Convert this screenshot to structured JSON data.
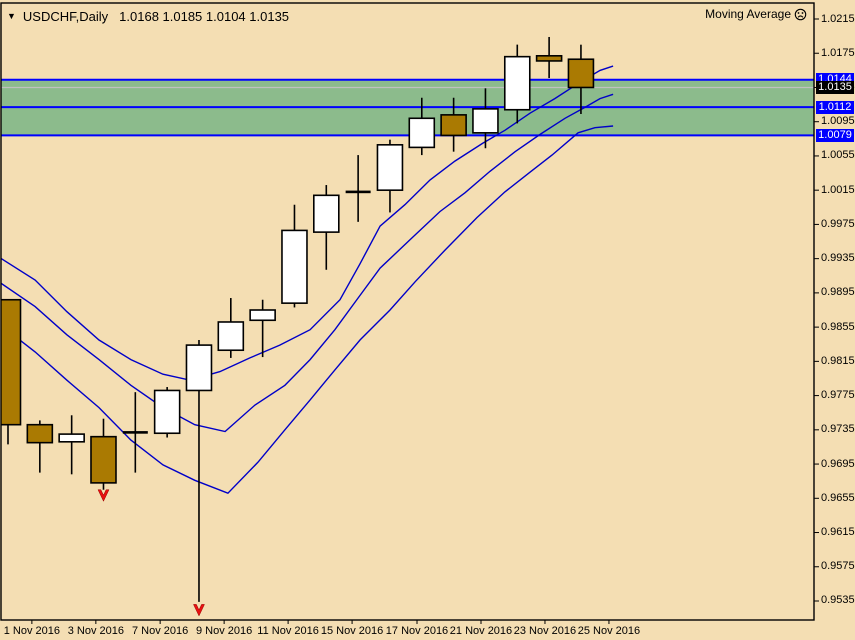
{
  "title": {
    "dropdown_icon": "▼",
    "symbol_period": "USDCHF,Daily",
    "ohlc": "1.0168 1.0185 1.0104 1.0135"
  },
  "indicator_label": {
    "text": "Moving Average",
    "icon": "sad-face"
  },
  "colors": {
    "background": "#F4DEB3",
    "band_green": "#8CBB8C",
    "level_blue": "#0000FF",
    "ma_blue": "#0000C8",
    "current_price_silver": "#C0C0C0",
    "candle_bear_fill": "#AA7A02",
    "candle_bull_fill": "#FFFFFF",
    "candle_border": "#000000",
    "arrow_red": "#E81010",
    "badge_blue_bg": "#0000FF",
    "badge_black_bg": "#000000",
    "badge_text": "#FFFFFF",
    "axis_text": "#000000",
    "border_black": "#000000"
  },
  "chart_data": {
    "type": "candlestick",
    "symbol": "USDCHF",
    "timeframe": "Daily",
    "title": "USDCHF,Daily 1.0168 1.0185 1.0104 1.0135",
    "grid": false,
    "legend_position": "none",
    "ylim_plot": [
      0.95128,
      1.02337
    ],
    "y_ticks": [
      1.0215,
      1.0175,
      1.0135,
      1.0095,
      1.0055,
      1.0015,
      0.9975,
      0.9935,
      0.9895,
      0.9855,
      0.9815,
      0.9775,
      0.9735,
      0.9695,
      0.9655,
      0.9615,
      0.9575,
      0.9535
    ],
    "x_ticks": [
      {
        "index": 0.75,
        "label": "1 Nov 2016"
      },
      {
        "index": 2.76,
        "label": "3 Nov 2016"
      },
      {
        "index": 4.78,
        "label": "7 Nov 2016"
      },
      {
        "index": 6.79,
        "label": "9 Nov 2016"
      },
      {
        "index": 8.8,
        "label": "11 Nov 2016"
      },
      {
        "index": 10.81,
        "label": "15 Nov 2016"
      },
      {
        "index": 12.85,
        "label": "17 Nov 2016"
      },
      {
        "index": 14.86,
        "label": "21 Nov 2016"
      },
      {
        "index": 16.87,
        "label": "23 Nov 2016"
      },
      {
        "index": 18.88,
        "label": "25 Nov 2016"
      }
    ],
    "candles": [
      {
        "date": "1 Nov 2016",
        "o": 0.9887,
        "h": 0.9887,
        "l": 0.9718,
        "c": 0.9741,
        "dir": "bear"
      },
      {
        "date": "2 Nov 2016",
        "o": 0.9741,
        "h": 0.9746,
        "l": 0.9685,
        "c": 0.972,
        "dir": "bear"
      },
      {
        "date": "3 Nov 2016",
        "o": 0.9721,
        "h": 0.9752,
        "l": 0.9683,
        "c": 0.973,
        "dir": "bull"
      },
      {
        "date": "4 Nov 2016",
        "o": 0.9727,
        "h": 0.9748,
        "l": 0.9665,
        "c": 0.9673,
        "dir": "bear"
      },
      {
        "date": "7 Nov 2016",
        "o": 0.9732,
        "h": 0.9779,
        "l": 0.9685,
        "c": 0.9732,
        "dir": "doji"
      },
      {
        "date": "8 Nov 2016",
        "o": 0.9731,
        "h": 0.9785,
        "l": 0.9726,
        "c": 0.9781,
        "dir": "bull"
      },
      {
        "date": "9 Nov 2016",
        "o": 0.9781,
        "h": 0.984,
        "l": 0.9534,
        "c": 0.9834,
        "dir": "bull"
      },
      {
        "date": "10 Nov 2016",
        "o": 0.9828,
        "h": 0.9889,
        "l": 0.9819,
        "c": 0.9861,
        "dir": "bull"
      },
      {
        "date": "11 Nov 2016",
        "o": 0.9863,
        "h": 0.9887,
        "l": 0.982,
        "c": 0.9875,
        "dir": "bull"
      },
      {
        "date": "14 Nov 2016",
        "o": 0.9883,
        "h": 0.9998,
        "l": 0.9878,
        "c": 0.9968,
        "dir": "bull"
      },
      {
        "date": "15 Nov 2016",
        "o": 0.9966,
        "h": 1.0021,
        "l": 0.9922,
        "c": 1.0009,
        "dir": "bull"
      },
      {
        "date": "16 Nov 2016",
        "o": 1.0013,
        "h": 1.0056,
        "l": 0.9978,
        "c": 1.0013,
        "dir": "doji"
      },
      {
        "date": "17 Nov 2016",
        "o": 1.0015,
        "h": 1.0074,
        "l": 0.9989,
        "c": 1.0068,
        "dir": "bull"
      },
      {
        "date": "18 Nov 2016",
        "o": 1.0065,
        "h": 1.0123,
        "l": 1.0056,
        "c": 1.0099,
        "dir": "bull"
      },
      {
        "date": "21 Nov 2016",
        "o": 1.0103,
        "h": 1.0123,
        "l": 1.006,
        "c": 1.0079,
        "dir": "bear"
      },
      {
        "date": "22 Nov 2016",
        "o": 1.0082,
        "h": 1.0134,
        "l": 1.0064,
        "c": 1.011,
        "dir": "bull"
      },
      {
        "date": "23 Nov 2016",
        "o": 1.0109,
        "h": 1.0185,
        "l": 1.0093,
        "c": 1.0171,
        "dir": "bull"
      },
      {
        "date": "24 Nov 2016",
        "o": 1.0172,
        "h": 1.0194,
        "l": 1.0146,
        "c": 1.0166,
        "dir": "bear"
      },
      {
        "date": "25 Nov 2016",
        "o": 1.0168,
        "h": 1.0185,
        "l": 1.0104,
        "c": 1.0135,
        "dir": "bear"
      }
    ],
    "band": {
      "from": 1.0079,
      "to": 1.0144
    },
    "levels": [
      {
        "price": 1.0144,
        "badge": "1.0144",
        "badge_bg": "blue"
      },
      {
        "price": 1.0112,
        "badge": "1.0112",
        "badge_bg": "blue"
      },
      {
        "price": 1.0079,
        "badge": "1.0079",
        "badge_bg": "blue"
      }
    ],
    "current_price_line": {
      "price": 1.0135,
      "badge": "1.0135",
      "badge_bg": "black"
    },
    "ma_lines": [
      {
        "name": "ma-upper",
        "points": [
          [
            -0.25,
            0.9936
          ],
          [
            0.85,
            0.991
          ],
          [
            1.85,
            0.9873
          ],
          [
            2.86,
            0.984
          ],
          [
            3.86,
            0.9817
          ],
          [
            4.87,
            0.98
          ],
          [
            5.72,
            0.9793
          ],
          [
            6.66,
            0.9803
          ],
          [
            7.6,
            0.9819
          ],
          [
            8.54,
            0.9834
          ],
          [
            9.49,
            0.9852
          ],
          [
            10.43,
            0.9887
          ],
          [
            11.06,
            0.9929
          ],
          [
            11.69,
            0.9973
          ],
          [
            12.47,
            0.9998
          ],
          [
            13.26,
            1.0027
          ],
          [
            14.04,
            1.0049
          ],
          [
            14.92,
            1.007
          ],
          [
            15.61,
            1.0085
          ],
          [
            16.4,
            1.0105
          ],
          [
            17.18,
            1.0122
          ],
          [
            17.97,
            1.0141
          ],
          [
            18.6,
            1.0155
          ],
          [
            19.01,
            1.016
          ]
        ]
      },
      {
        "name": "ma-middle",
        "points": [
          [
            -0.25,
            0.9907
          ],
          [
            0.85,
            0.9879
          ],
          [
            1.85,
            0.9846
          ],
          [
            2.86,
            0.9817
          ],
          [
            3.86,
            0.9787
          ],
          [
            4.87,
            0.9761
          ],
          [
            5.87,
            0.9741
          ],
          [
            6.82,
            0.9733
          ],
          [
            7.76,
            0.9764
          ],
          [
            8.7,
            0.9787
          ],
          [
            9.49,
            0.9817
          ],
          [
            10.27,
            0.9852
          ],
          [
            11.0,
            0.9889
          ],
          [
            11.69,
            0.9924
          ],
          [
            12.63,
            0.9957
          ],
          [
            13.57,
            0.999
          ],
          [
            14.36,
            1.0012
          ],
          [
            15.14,
            1.0037
          ],
          [
            15.93,
            1.006
          ],
          [
            16.71,
            1.008
          ],
          [
            17.5,
            1.0099
          ],
          [
            18.13,
            1.0112
          ],
          [
            18.6,
            1.0122
          ],
          [
            19.01,
            1.0127
          ]
        ]
      },
      {
        "name": "ma-lower",
        "points": [
          [
            -0.25,
            0.9858
          ],
          [
            0.85,
            0.9826
          ],
          [
            1.85,
            0.9793
          ],
          [
            2.86,
            0.9761
          ],
          [
            3.86,
            0.9723
          ],
          [
            4.87,
            0.9694
          ],
          [
            5.87,
            0.9676
          ],
          [
            6.91,
            0.9661
          ],
          [
            7.85,
            0.9697
          ],
          [
            8.7,
            0.9735
          ],
          [
            9.49,
            0.977
          ],
          [
            10.27,
            0.9805
          ],
          [
            11.06,
            0.984
          ],
          [
            12.0,
            0.9875
          ],
          [
            12.79,
            0.9908
          ],
          [
            13.73,
            0.9945
          ],
          [
            14.73,
            0.9983
          ],
          [
            15.61,
            1.0013
          ],
          [
            16.4,
            1.0036
          ],
          [
            17.09,
            1.0056
          ],
          [
            17.91,
            1.0082
          ],
          [
            18.44,
            1.0088
          ],
          [
            19.01,
            1.009
          ]
        ]
      }
    ],
    "sell_arrows": [
      {
        "index": 3,
        "price": 0.9658
      },
      {
        "index": 6,
        "price": 0.9524
      }
    ]
  }
}
